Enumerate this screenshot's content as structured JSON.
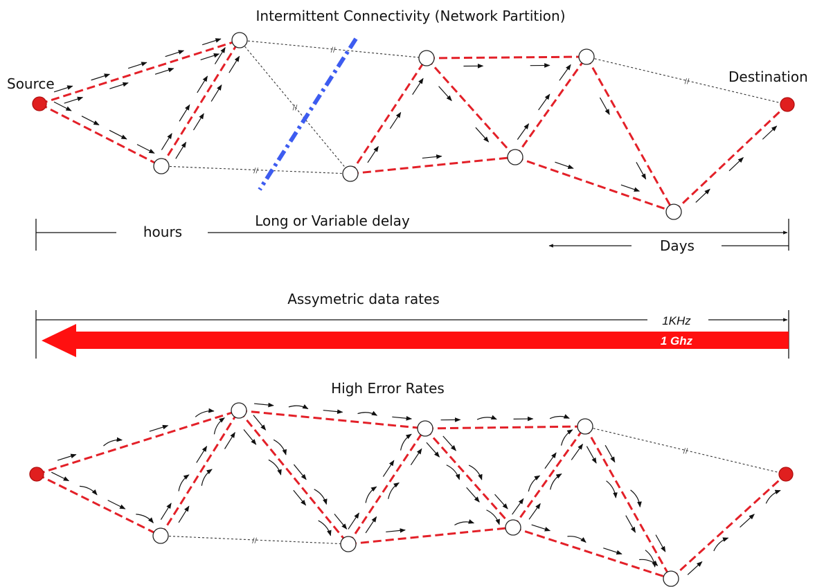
{
  "titles": {
    "intermittent": "Intermittent Connectivity (Network Partition)",
    "delay": "Long or Variable delay",
    "asym": "Assymetric data rates",
    "error": "High Error Rates"
  },
  "labels": {
    "source": "Source",
    "destination": "Destination",
    "hours": "hours",
    "days": "Days",
    "rate_low": "1KHz",
    "rate_high": "1 Ghz"
  },
  "colors": {
    "link_active": "#e32028",
    "link_idle": "#333333",
    "partition": "#3d5cf0",
    "endpoint": "#e01f1f",
    "node": "#ffffff"
  }
}
